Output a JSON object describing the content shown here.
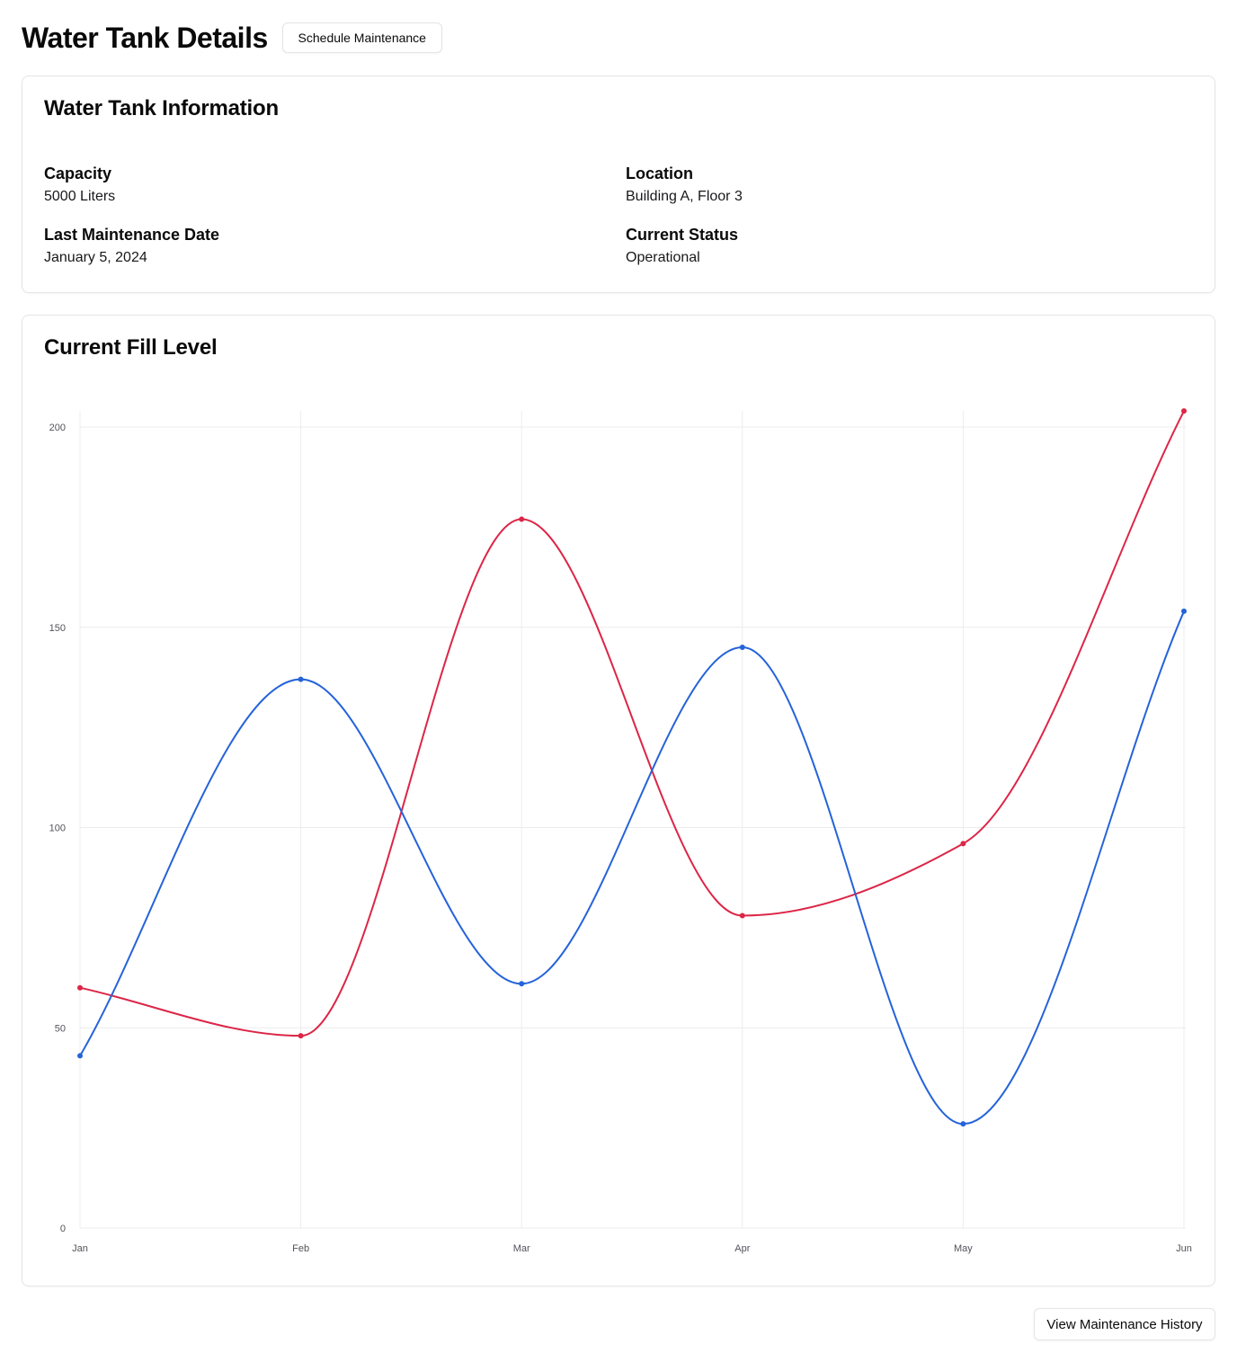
{
  "header": {
    "title": "Water Tank Details",
    "schedule_button": "Schedule Maintenance"
  },
  "info_card": {
    "title": "Water Tank Information",
    "capacity_label": "Capacity",
    "capacity_value": "5000 Liters",
    "location_label": "Location",
    "location_value": "Building A, Floor 3",
    "last_maintenance_label": "Last Maintenance Date",
    "last_maintenance_value": "January 5, 2024",
    "status_label": "Current Status",
    "status_value": "Operational"
  },
  "chart_card": {
    "title": "Current Fill Level"
  },
  "chart_data": {
    "type": "line",
    "categories": [
      "Jan",
      "Feb",
      "Mar",
      "Apr",
      "May",
      "Jun"
    ],
    "series": [
      {
        "color": "#dc2647",
        "values": [
          60,
          48,
          177,
          78,
          96,
          204
        ]
      },
      {
        "color": "#2563d9",
        "values": [
          43,
          137,
          61,
          145,
          26,
          154
        ]
      }
    ],
    "ylim": [
      0,
      200
    ],
    "yticks": [
      0,
      50,
      100,
      150,
      200
    ],
    "grid": true
  },
  "footer": {
    "history_button": "View Maintenance History"
  }
}
